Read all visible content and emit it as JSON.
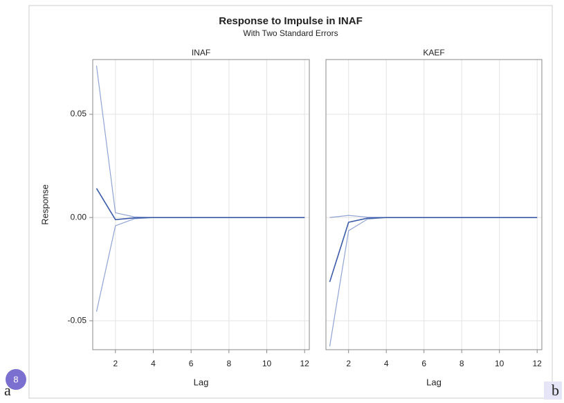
{
  "figure": {
    "title": "Response to Impulse in INAF",
    "subtitle": "With Two Standard Errors"
  },
  "badge": "8",
  "left_label": "a",
  "right_label": "b",
  "chart_data": [
    {
      "type": "line",
      "title": "INAF",
      "xlabel": "Lag",
      "ylabel": "Response",
      "x": [
        1,
        2,
        3,
        4,
        5,
        6,
        7,
        8,
        9,
        10,
        11,
        12
      ],
      "series": [
        {
          "color": "#8fa3d4",
          "values": [
            0.0735,
            0.0023,
            0.0003,
            0,
            0,
            0,
            0,
            0,
            0,
            0,
            0,
            0
          ]
        },
        {
          "color": "#8fa3d4",
          "values": [
            -0.0456,
            -0.004,
            -0.0006,
            0,
            0,
            0,
            0,
            0,
            0,
            0,
            0,
            0
          ]
        },
        {
          "color": "#3a5aa8",
          "values": [
            0.0141,
            -0.001,
            -0.0002,
            0,
            0,
            0,
            0,
            0,
            0,
            0,
            0,
            0
          ]
        }
      ],
      "xlim": [
        0.8,
        12.25
      ],
      "xticks": [
        2,
        4,
        6,
        8,
        10,
        12
      ],
      "ylim": [
        -0.064,
        0.0765
      ],
      "yticks": [
        {
          "value": -0.05,
          "label": "-0.05"
        },
        {
          "value": 0,
          "label": "0.00"
        },
        {
          "value": 0.05,
          "label": "0.05"
        }
      ],
      "grid": true
    },
    {
      "type": "line",
      "title": "KAEF",
      "xlabel": "Lag",
      "x": [
        1,
        2,
        3,
        4,
        5,
        6,
        7,
        8,
        9,
        10,
        11,
        12
      ],
      "series": [
        {
          "color": "#8fa3d4",
          "values": [
            0,
            0.001,
            0.0002,
            0,
            0,
            0,
            0,
            0,
            0,
            0,
            0,
            0
          ]
        },
        {
          "color": "#8fa3d4",
          "values": [
            -0.0624,
            -0.0064,
            -0.0008,
            0,
            0,
            0,
            0,
            0,
            0,
            0,
            0,
            0
          ]
        },
        {
          "color": "#3a5aa8",
          "values": [
            -0.0312,
            -0.0023,
            -0.0003,
            0,
            0,
            0,
            0,
            0,
            0,
            0,
            0,
            0
          ]
        }
      ],
      "xlim": [
        0.8,
        12.25
      ],
      "xticks": [
        2,
        4,
        6,
        8,
        10,
        12
      ],
      "ylim": [
        -0.064,
        0.0765
      ],
      "yticks": [
        {
          "value": -0.05,
          "label": "-0.05"
        },
        {
          "value": 0,
          "label": "0.00"
        },
        {
          "value": 0.05,
          "label": "0.05"
        }
      ],
      "grid": true
    }
  ]
}
